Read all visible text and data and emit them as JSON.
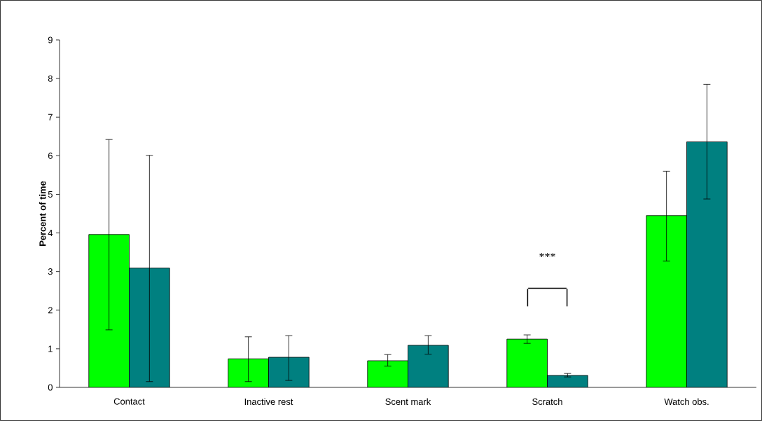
{
  "chart_data": {
    "type": "bar",
    "ylabel": "Percent of time",
    "categories": [
      "Contact",
      "Inactive rest",
      "Scent  mark",
      "Scratch",
      "Watch obs."
    ],
    "series": [
      {
        "color": "#00ff00",
        "values": [
          3.96,
          0.74,
          0.69,
          1.25,
          4.45
        ],
        "errors": [
          [
            1.49,
            6.42
          ],
          [
            0.15,
            1.31
          ],
          [
            0.55,
            0.85
          ],
          [
            1.14,
            1.36
          ],
          [
            3.27,
            5.6
          ]
        ]
      },
      {
        "color": "#008080",
        "values": [
          3.09,
          0.78,
          1.09,
          0.31,
          6.36
        ],
        "errors": [
          [
            0.15,
            6.01
          ],
          [
            0.18,
            1.34
          ],
          [
            0.86,
            1.34
          ],
          [
            0.27,
            0.36
          ],
          [
            4.88,
            7.85
          ]
        ]
      }
    ],
    "ylim": [
      0,
      9
    ],
    "yticks": [
      0,
      1,
      2,
      3,
      4,
      5,
      6,
      7,
      8,
      9
    ],
    "annotations": [
      "***"
    ]
  }
}
